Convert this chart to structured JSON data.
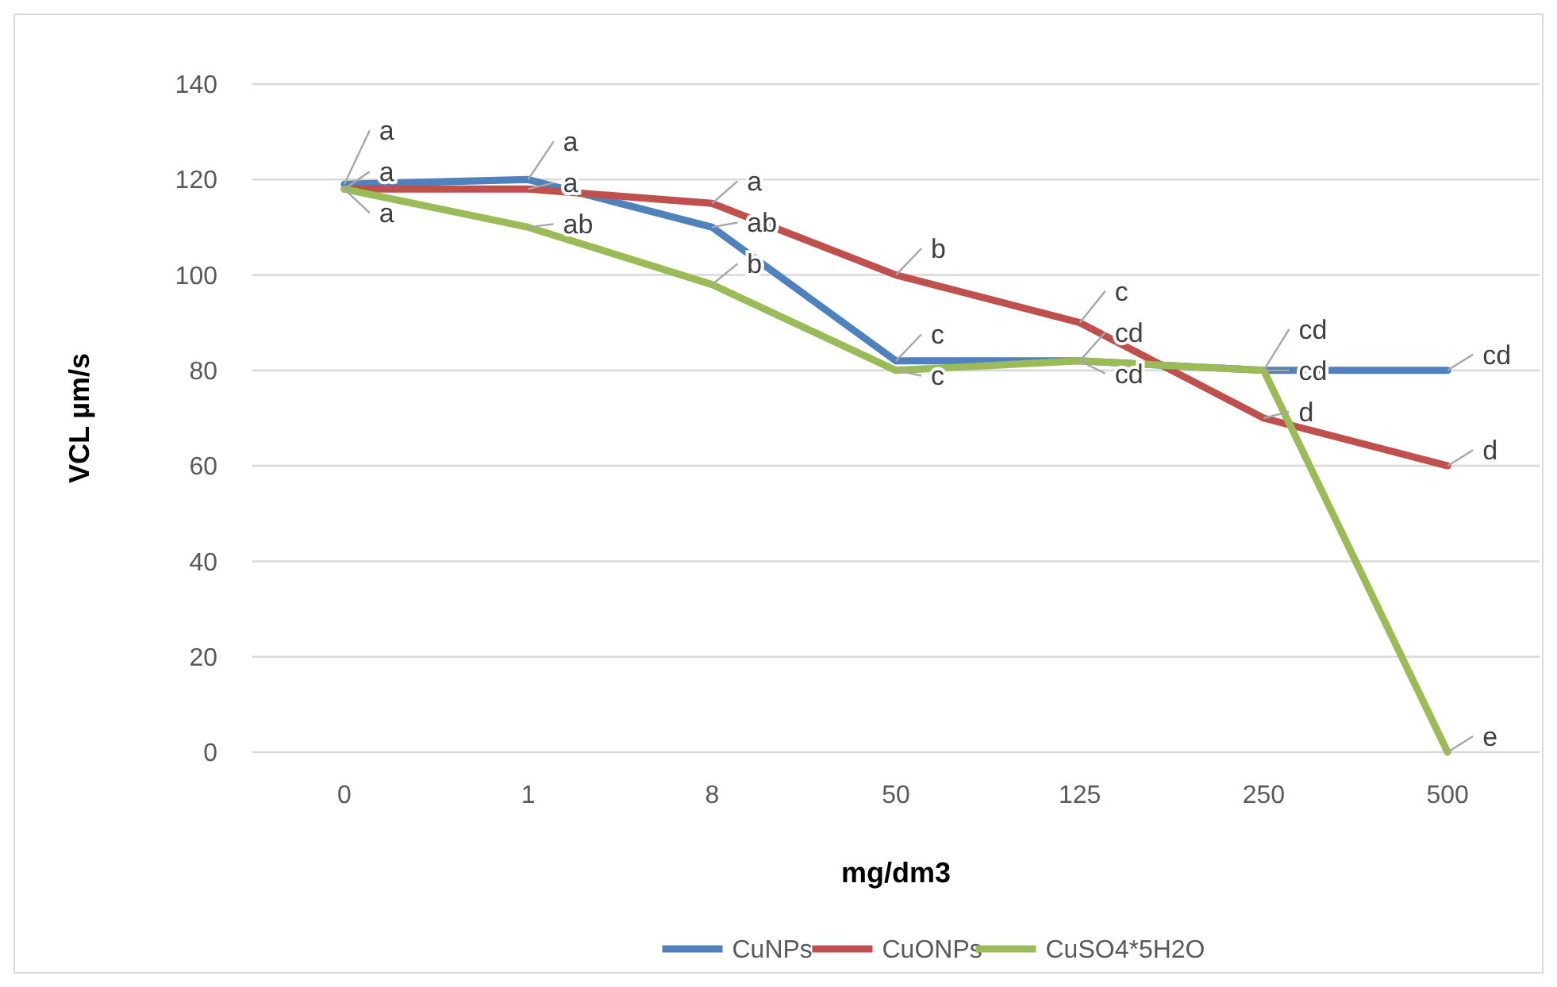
{
  "chart_data": {
    "type": "line",
    "xlabel": "mg/dm3",
    "ylabel": "VCL µm/s",
    "categories": [
      "0",
      "1",
      "8",
      "50",
      "125",
      "250",
      "500"
    ],
    "ylim": [
      0,
      140
    ],
    "yticks": [
      0,
      20,
      40,
      60,
      80,
      100,
      120,
      140
    ],
    "grid": "y",
    "legend": "bottom",
    "marker": "none",
    "line_style": "solid",
    "series": [
      {
        "name": "CuNPs",
        "color": "#4f81bd",
        "values": [
          119,
          120,
          110,
          82,
          82,
          80,
          80
        ]
      },
      {
        "name": "CuONPs",
        "color": "#c0504d",
        "values": [
          118,
          118,
          115,
          100,
          90,
          70,
          60
        ]
      },
      {
        "name": "CuSO4*5H2O",
        "color": "#9bbb59",
        "values": [
          118,
          110,
          98,
          80,
          82,
          80,
          0
        ]
      }
    ],
    "annotations": [
      {
        "text": "a",
        "x": "0",
        "y": 119
      },
      {
        "text": "a",
        "x": "0",
        "y": 118
      },
      {
        "text": "a",
        "x": "0",
        "y": 118
      },
      {
        "text": "a",
        "x": "1",
        "y": 120
      },
      {
        "text": "a",
        "x": "1",
        "y": 118
      },
      {
        "text": "ab",
        "x": "1",
        "y": 110
      },
      {
        "text": "a",
        "x": "8",
        "y": 115
      },
      {
        "text": "ab",
        "x": "8",
        "y": 110
      },
      {
        "text": "b",
        "x": "8",
        "y": 98
      },
      {
        "text": "b",
        "x": "50",
        "y": 100
      },
      {
        "text": "c",
        "x": "50",
        "y": 82
      },
      {
        "text": "c",
        "x": "50",
        "y": 80
      },
      {
        "text": "c",
        "x": "125",
        "y": 90
      },
      {
        "text": "cd",
        "x": "125",
        "y": 82
      },
      {
        "text": "cd",
        "x": "125",
        "y": 82
      },
      {
        "text": "cd",
        "x": "250",
        "y": 80
      },
      {
        "text": "cd",
        "x": "250",
        "y": 80
      },
      {
        "text": "d",
        "x": "250",
        "y": 70
      },
      {
        "text": "cd",
        "x": "500",
        "y": 80
      },
      {
        "text": "d",
        "x": "500",
        "y": 60
      },
      {
        "text": "e",
        "x": "500",
        "y": 0
      }
    ]
  }
}
